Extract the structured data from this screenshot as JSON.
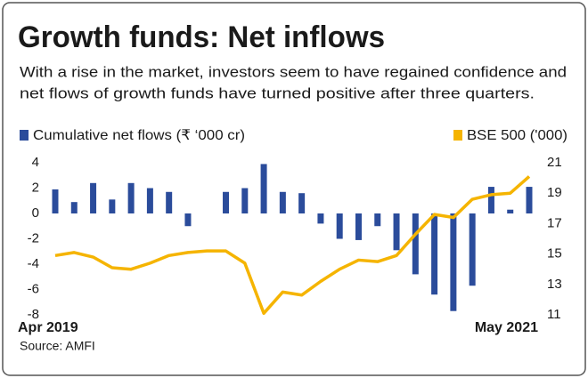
{
  "chart_data": {
    "type": "bar-line",
    "title": "Growth funds: Net inflows",
    "subtitle": [
      "With a rise in the market, investors seem to have regained confidence and",
      "net flows of growth funds have turned positive after three quarters."
    ],
    "source": "Source: AMFI",
    "categories": [
      "Apr 2019",
      null,
      null,
      null,
      null,
      null,
      null,
      null,
      null,
      null,
      null,
      null,
      null,
      null,
      null,
      null,
      null,
      null,
      null,
      null,
      null,
      null,
      null,
      null,
      null,
      "May 2021"
    ],
    "series": [
      {
        "name": "Cumulative net flows (₹ ‘000 cr)",
        "color": "#2b4c9b",
        "type": "bar",
        "values": [
          1.9,
          0.9,
          2.4,
          1.1,
          2.4,
          2.0,
          1.7,
          -1.0,
          0,
          1.7,
          2.0,
          3.9,
          1.7,
          1.6,
          -0.8,
          -2.0,
          -2.1,
          -1.0,
          -2.9,
          -4.8,
          -6.4,
          -7.7,
          -5.7,
          2.1,
          0.3,
          2.1
        ]
      },
      {
        "name": "BSE 500 ('000)",
        "color": "#f5b400",
        "type": "line",
        "axis": "y2",
        "values": [
          14.9,
          15.1,
          14.8,
          14.1,
          14.0,
          14.4,
          14.9,
          15.1,
          15.2,
          15.2,
          14.4,
          11.1,
          12.5,
          12.3,
          13.2,
          14.0,
          14.6,
          14.5,
          14.9,
          16.3,
          17.6,
          17.4,
          18.6,
          18.9,
          19.0,
          20.1
        ]
      }
    ],
    "ylim": [
      -8,
      4
    ],
    "yticks": [
      4,
      2,
      0,
      -2,
      -4,
      -6,
      -8
    ],
    "y2lim": [
      11,
      21
    ],
    "y2ticks": [
      21,
      19,
      17,
      15,
      13,
      11
    ]
  }
}
